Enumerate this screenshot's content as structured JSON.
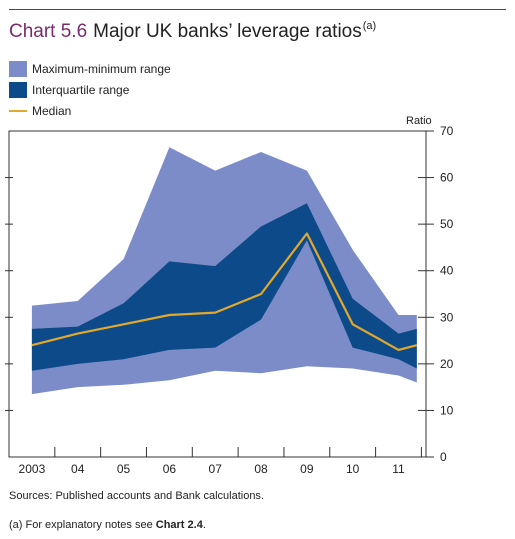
{
  "header": {
    "chart_number": "Chart 5.6",
    "title": "Major UK banks’ leverage ratios",
    "title_note": "(a)"
  },
  "colors": {
    "range_fill": "#7b8cc9",
    "iqr_fill": "#0d4a8a",
    "median_line": "#e2a82b",
    "accent": "#7a2a6e"
  },
  "chart_data": {
    "type": "area",
    "title": "Major UK banks’ leverage ratios",
    "ylabel": "Ratio",
    "ylim": [
      0,
      70
    ],
    "yticks": [
      0,
      10,
      20,
      30,
      40,
      50,
      60,
      70
    ],
    "x_tick_labels": [
      "2003",
      "04",
      "05",
      "06",
      "07",
      "08",
      "09",
      "10",
      "11"
    ],
    "x": [
      2002.5,
      2003.5,
      2004.5,
      2005.5,
      2006.5,
      2007.5,
      2008.5,
      2009.5,
      2010.5,
      2010.9
    ],
    "series": [
      {
        "name": "Maximum-minimum range",
        "upper": [
          32.5,
          33.5,
          42.5,
          66.5,
          61.5,
          65.5,
          61.5,
          44.5,
          30.5,
          30.5
        ],
        "lower": [
          13.5,
          15,
          15.5,
          16.5,
          18.5,
          18,
          19.5,
          19,
          17.5,
          16
        ]
      },
      {
        "name": "Interquartile range",
        "upper": [
          27.5,
          28,
          33,
          42,
          41,
          49.5,
          54.5,
          34,
          26.5,
          27.5
        ],
        "lower": [
          18.5,
          20,
          21,
          23,
          23.5,
          29.5,
          46.5,
          23.5,
          21,
          19
        ]
      },
      {
        "name": "Median",
        "values": [
          24,
          26.5,
          28.5,
          30.5,
          31,
          35,
          48,
          28.5,
          23,
          24
        ]
      }
    ],
    "legend_position": "top-left"
  },
  "legend": [
    {
      "label": "Maximum-minimum range"
    },
    {
      "label": "Interquartile range"
    },
    {
      "label": "Median"
    }
  ],
  "footer": {
    "sources": "Sources:  Published accounts and Bank calculations.",
    "note_prefix": "(a)  For explanatory notes see ",
    "note_ref": "Chart 2.4",
    "note_suffix": "."
  }
}
